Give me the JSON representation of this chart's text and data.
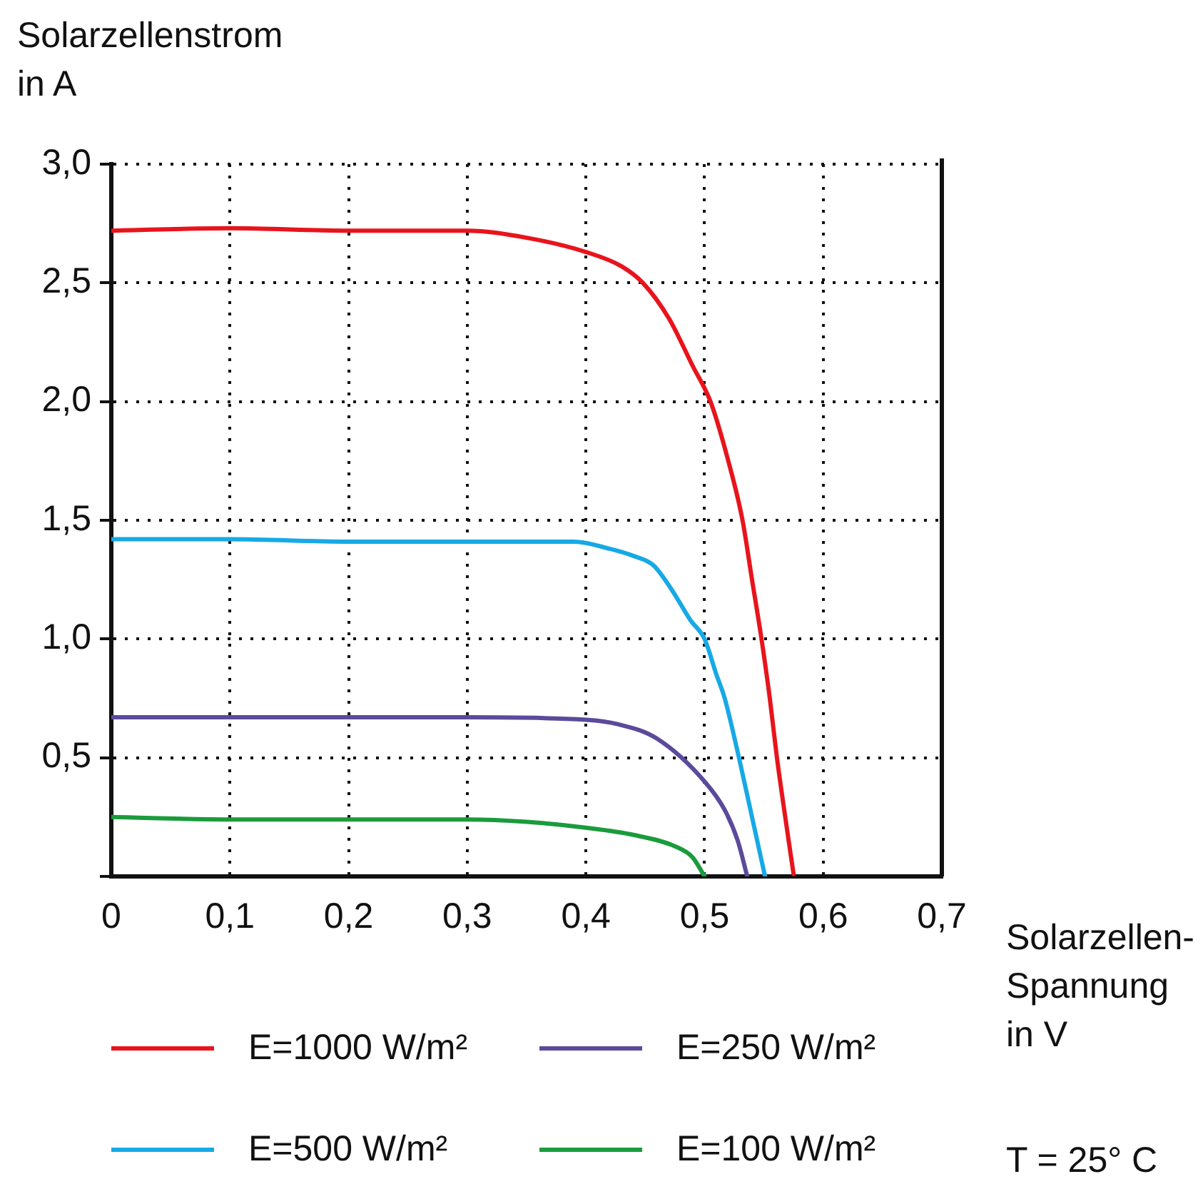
{
  "chart_data": {
    "type": "line",
    "xlabel": "Solarzellen-\nSpannung\nin V",
    "ylabel": "Solarzellenstrom\nin A",
    "xlim": [
      0,
      0.7
    ],
    "ylim": [
      0,
      3.0
    ],
    "xticks": [
      {
        "value": 0,
        "label": "0"
      },
      {
        "value": 0.1,
        "label": "0,1"
      },
      {
        "value": 0.2,
        "label": "0,2"
      },
      {
        "value": 0.3,
        "label": "0,3"
      },
      {
        "value": 0.4,
        "label": "0,4"
      },
      {
        "value": 0.5,
        "label": "0,5"
      },
      {
        "value": 0.6,
        "label": "0,6"
      },
      {
        "value": 0.7,
        "label": "0,7"
      }
    ],
    "yticks": [
      {
        "value": 0,
        "label": null
      },
      {
        "value": 0.5,
        "label": "0,5"
      },
      {
        "value": 1.0,
        "label": "1,0"
      },
      {
        "value": 1.5,
        "label": "1,5"
      },
      {
        "value": 2.0,
        "label": "2,0"
      },
      {
        "value": 2.5,
        "label": "2,5"
      },
      {
        "value": 3.0,
        "label": "3,0"
      }
    ],
    "grid": true,
    "legend": "bottom",
    "annotations": [
      "T = 25° C"
    ],
    "series": [
      {
        "name": "E=1000 W/m²",
        "color": "#e8141c",
        "x": [
          0,
          0.1,
          0.2,
          0.3,
          0.35,
          0.4,
          0.43,
          0.448,
          0.47,
          0.49,
          0.505,
          0.52,
          0.532,
          0.54,
          0.548,
          0.555,
          0.561,
          0.568,
          0.575
        ],
        "values": [
          2.72,
          2.73,
          2.72,
          2.72,
          2.69,
          2.63,
          2.57,
          2.5,
          2.35,
          2.15,
          2.0,
          1.75,
          1.5,
          1.25,
          1.0,
          0.75,
          0.5,
          0.25,
          0.01
        ]
      },
      {
        "name": "E=250 W/m²",
        "color": "#5b4a9b",
        "x": [
          0,
          0.1,
          0.2,
          0.3,
          0.4,
          0.428,
          0.46,
          0.5,
          0.517,
          0.528,
          0.536
        ],
        "values": [
          0.67,
          0.67,
          0.67,
          0.67,
          0.66,
          0.64,
          0.58,
          0.4,
          0.28,
          0.15,
          0.0
        ]
      },
      {
        "name": "E=500 W/m²",
        "color": "#16a9e6",
        "x": [
          0,
          0.1,
          0.2,
          0.3,
          0.39,
          0.42,
          0.44,
          0.457,
          0.472,
          0.488,
          0.5,
          0.51,
          0.517,
          0.529,
          0.54,
          0.551
        ],
        "values": [
          1.42,
          1.42,
          1.41,
          1.41,
          1.41,
          1.38,
          1.35,
          1.31,
          1.21,
          1.08,
          1.0,
          0.85,
          0.75,
          0.5,
          0.25,
          0.0
        ]
      },
      {
        "name": "E=100 W/m²",
        "color": "#1a9b3c",
        "x": [
          0,
          0.1,
          0.2,
          0.3,
          0.35,
          0.4,
          0.44,
          0.476,
          0.49,
          0.5
        ],
        "values": [
          0.25,
          0.24,
          0.24,
          0.24,
          0.23,
          0.205,
          0.175,
          0.125,
          0.08,
          0.0
        ]
      }
    ]
  }
}
